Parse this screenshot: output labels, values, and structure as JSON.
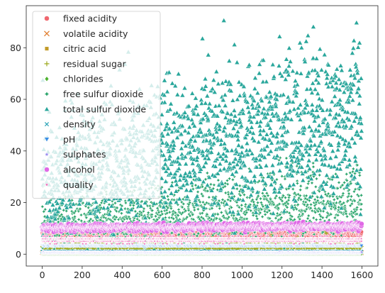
{
  "chart_data": {
    "type": "scatter",
    "title": "",
    "xlabel": "",
    "ylabel": "",
    "xlim": [
      -80,
      1680
    ],
    "ylim": [
      -4.6,
      96.3
    ],
    "x_ticks": [
      0,
      200,
      400,
      600,
      800,
      1000,
      1200,
      1400,
      1600
    ],
    "y_ticks": [
      0,
      20,
      40,
      60,
      80
    ],
    "grid": false,
    "legend_position": "top-left",
    "n_rows": 1599,
    "series": [
      {
        "name": "fixed acidity",
        "marker": "circle",
        "color": "#f0676f",
        "typical_range": [
          4.6,
          15.9
        ]
      },
      {
        "name": "volatile acidity",
        "marker": "x",
        "color": "#e07b2a",
        "typical_range": [
          0.12,
          1.58
        ]
      },
      {
        "name": "citric acid",
        "marker": "square",
        "color": "#c29a27",
        "typical_range": [
          0,
          1
        ]
      },
      {
        "name": "residual sugar",
        "marker": "plus",
        "color": "#9daa1f",
        "typical_range": [
          0.9,
          15.5
        ]
      },
      {
        "name": "chlorides",
        "marker": "diamond",
        "color": "#4fb22f",
        "typical_range": [
          0.01,
          0.61
        ]
      },
      {
        "name": "free sulfur dioxide",
        "marker": "star4",
        "color": "#2aa56b",
        "typical_range": [
          1,
          72
        ]
      },
      {
        "name": "total sulfur dioxide",
        "marker": "triangle-up",
        "color": "#2aa79c",
        "typical_range": [
          6,
          92
        ]
      },
      {
        "name": "density",
        "marker": "x-small",
        "color": "#2ea5b8",
        "typical_range": [
          0.99,
          1.0
        ]
      },
      {
        "name": "pH",
        "marker": "triangle-down",
        "color": "#3c8fe6",
        "typical_range": [
          2.74,
          4.01
        ]
      },
      {
        "name": "sulphates",
        "marker": "star",
        "color": "#9d8ff0",
        "typical_range": [
          0.33,
          2.0
        ]
      },
      {
        "name": "alcohol",
        "marker": "circle",
        "color": "#e069e6",
        "typical_range": [
          8.4,
          14.9
        ]
      },
      {
        "name": "quality",
        "marker": "star-small",
        "color": "#ef63b7",
        "typical_range": [
          3,
          8
        ]
      }
    ]
  }
}
